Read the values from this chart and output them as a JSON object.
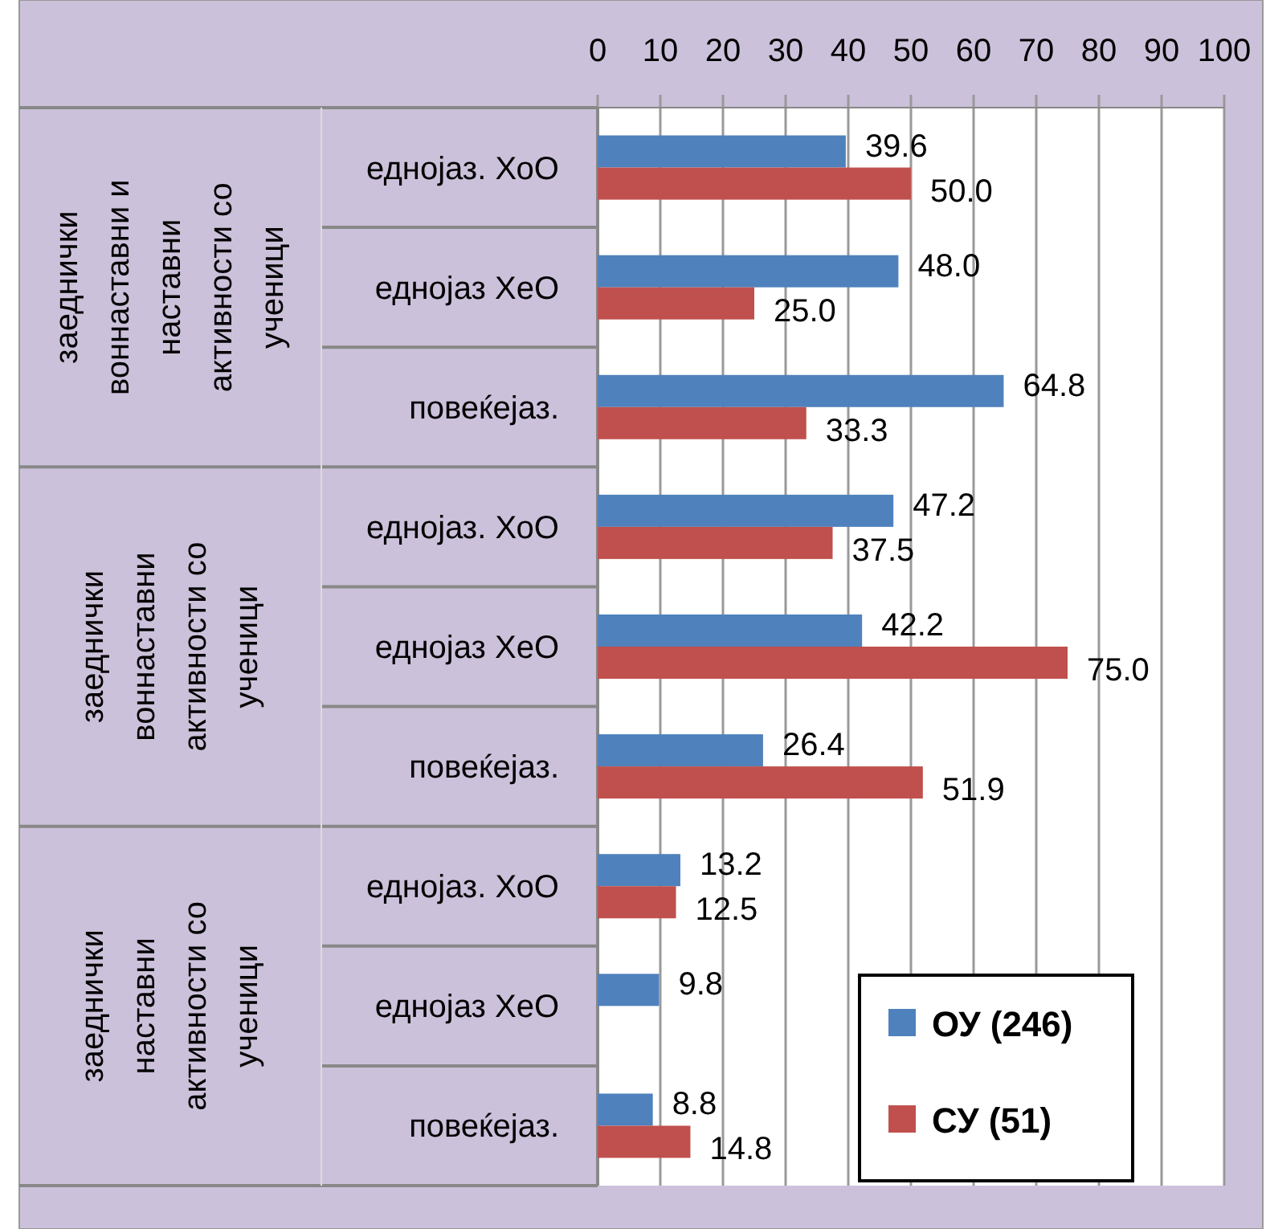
{
  "chart_data": {
    "type": "bar",
    "orientation": "horizontal",
    "categories": [
      "еднојаз. ХоО",
      "еднојаз ХеО",
      "повеќејаз.",
      "еднојаз. ХоО",
      "еднојаз ХеО",
      "повеќејаз.",
      "еднојаз. ХоО",
      "еднојаз ХеО",
      "повеќејаз."
    ],
    "annotations": [
      "заеднички воннаставни и наставни активности со ученици",
      "заеднички воннаставни активности со ученици",
      "заеднички наставни активности со ученици"
    ],
    "series": [
      {
        "name": "ОУ (246)",
        "color": "#4f81bd",
        "values": [
          39.6,
          48.0,
          64.8,
          47.2,
          42.2,
          26.4,
          13.2,
          9.8,
          8.8
        ],
        "value_labels": [
          "39.6",
          "48.0",
          "64.8",
          "47.2",
          "42.2",
          "26.4",
          "13.2",
          "9.8",
          "8.8"
        ]
      },
      {
        "name": "СУ (51)",
        "color": "#c0504d",
        "values": [
          50.0,
          25.0,
          33.3,
          37.5,
          75.0,
          51.9,
          12.5,
          null,
          14.8
        ],
        "value_labels": [
          "50.0",
          "25.0",
          "33.3",
          "37.5",
          "75.0",
          "51.9",
          "12.5",
          null,
          "14.8"
        ]
      }
    ],
    "xlim": [
      0,
      100
    ],
    "xticks": [
      0,
      10,
      20,
      30,
      40,
      50,
      60,
      70,
      80,
      90,
      100
    ],
    "grid": "x",
    "legend": "bottom right"
  }
}
